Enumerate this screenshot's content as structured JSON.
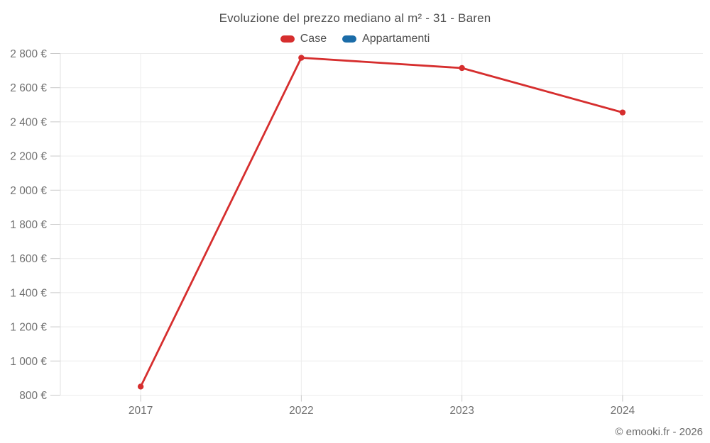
{
  "chart": {
    "title": "Evoluzione del prezzo mediano al m² - 31 - Baren"
  },
  "footer": {
    "copyright": "© emooki.fr - 2026"
  },
  "colors": {
    "case_red": "#d62e2e",
    "appartamenti_blue": "#1b6ca8",
    "gridline": "#ececec",
    "axis_line": "#e0e0e0",
    "tick_mark": "#c9c9c9",
    "title_text": "#4e4e4e",
    "tick_text": "#717171",
    "footer_text": "#6b6b6b"
  },
  "chart_data": {
    "type": "line",
    "title": "Evoluzione del prezzo mediano al m² - 31 - Baren",
    "categories": [
      "2017",
      "2022",
      "2023",
      "2024"
    ],
    "series": [
      {
        "name": "Case",
        "color": "#d62e2e",
        "values": [
          850,
          2775,
          2715,
          2455
        ]
      },
      {
        "name": "Appartamenti",
        "color": "#1b6ca8",
        "values": []
      }
    ],
    "xlabel": "",
    "ylabel": "",
    "ylim": [
      800,
      2800
    ],
    "y_ticks": [
      {
        "value": 800,
        "label": "800 €"
      },
      {
        "value": 1000,
        "label": "1 000 €"
      },
      {
        "value": 1200,
        "label": "1 200 €"
      },
      {
        "value": 1400,
        "label": "1 400 €"
      },
      {
        "value": 1600,
        "label": "1 600 €"
      },
      {
        "value": 1800,
        "label": "1 800 €"
      },
      {
        "value": 2000,
        "label": "2 000 €"
      },
      {
        "value": 2200,
        "label": "2 200 €"
      },
      {
        "value": 2400,
        "label": "2 400 €"
      },
      {
        "value": 2600,
        "label": "2 600 €"
      },
      {
        "value": 2800,
        "label": "2 800 €"
      }
    ],
    "grid": true,
    "legend_position": "top",
    "unit": "€"
  }
}
